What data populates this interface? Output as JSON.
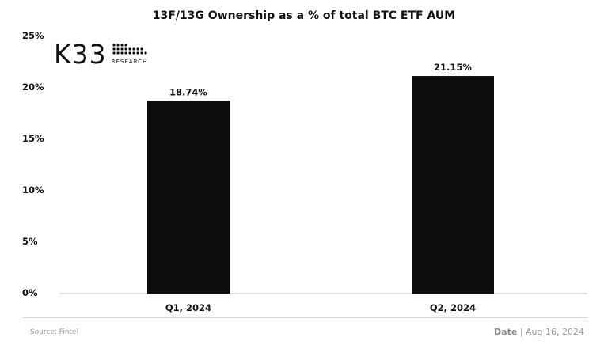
{
  "chart_data": {
    "type": "bar",
    "title": "13F/13G Ownership as a % of total BTC ETF AUM",
    "categories": [
      "Q1, 2024",
      "Q2, 2024"
    ],
    "values": [
      18.74,
      21.15
    ],
    "value_labels": [
      "18.74%",
      "21.15%"
    ],
    "xlabel": "",
    "ylabel": "",
    "ylim": [
      0,
      25
    ],
    "yticks": [
      "0%",
      "5%",
      "10%",
      "15%",
      "20%",
      "25%"
    ],
    "grid": false,
    "bar_color": "#0d0d0f"
  },
  "branding": {
    "logo_word": "K33",
    "logo_sub": "RESEARCH"
  },
  "footer": {
    "source": "Source:  Fintel",
    "date_label": "Date",
    "date_value": "| Aug 16, 2024"
  }
}
